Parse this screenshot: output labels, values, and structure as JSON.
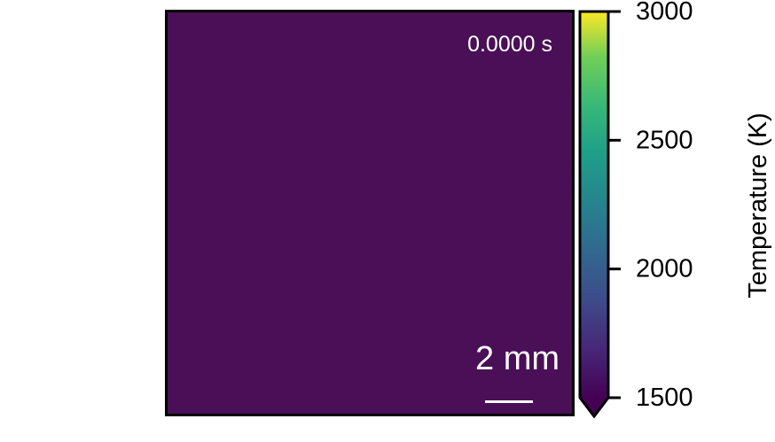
{
  "chart_data": {
    "type": "heatmap",
    "time_label": "0.0000 s",
    "field_color": "#4a0f57",
    "scale_bar_label": "2 mm",
    "colorbar": {
      "label": "Temperature (K)",
      "range": [
        1500,
        3000
      ],
      "ticks": [
        1500,
        2000,
        2500,
        3000
      ],
      "tick_labels": [
        "1500",
        "2000",
        "2500",
        "3000"
      ],
      "colormap": "viridis",
      "extend": "min"
    }
  }
}
